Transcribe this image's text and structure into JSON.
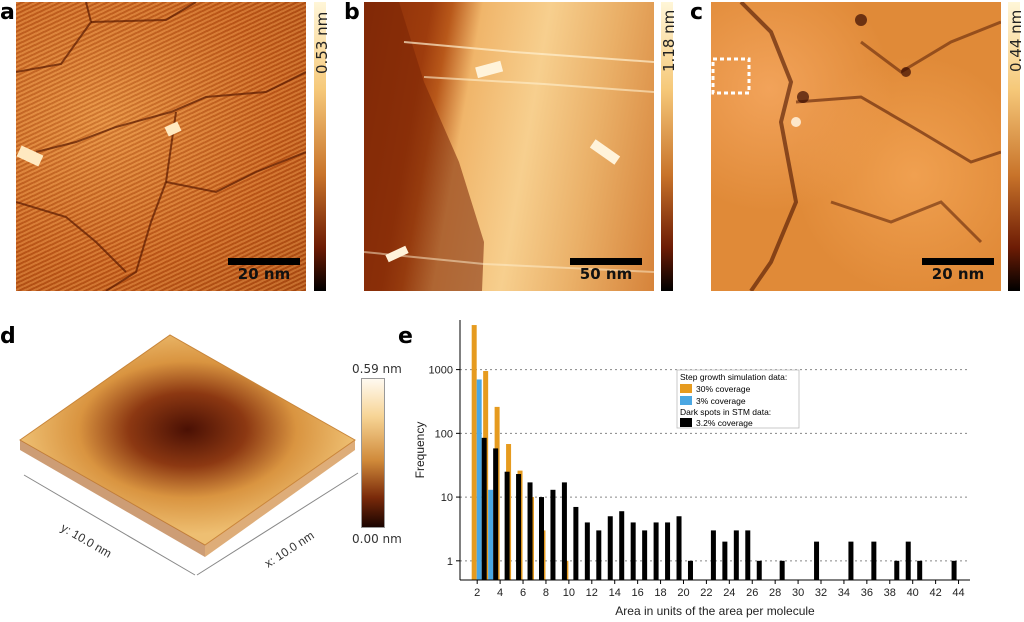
{
  "panels": {
    "a": {
      "letter": "a",
      "scale": "20 nm",
      "cbar": "0.53 nm"
    },
    "b": {
      "letter": "b",
      "scale": "50 nm",
      "cbar": "1.18 nm"
    },
    "c": {
      "letter": "c",
      "scale": "20 nm",
      "cbar": "0.44 nm"
    },
    "d": {
      "letter": "d",
      "cbar_top": "0.59 nm",
      "cbar_bottom": "0.00 nm",
      "axis_y": "y: 10.0 nm",
      "axis_x": "x: 10.0 nm"
    },
    "e": {
      "letter": "e"
    }
  },
  "colors": {
    "orange": "#e69b1f",
    "blue": "#4aa7e3",
    "black": "#000000"
  },
  "chart_data": {
    "type": "bar",
    "xlabel": "Area in units of the area per molecule",
    "ylabel": "Frequency",
    "yscale": "log",
    "ylim": [
      0.5,
      6000
    ],
    "yticks": [
      1,
      10,
      100,
      1000
    ],
    "ytick_labels": [
      "1",
      "10",
      "100",
      "1000"
    ],
    "xticks": [
      2,
      4,
      6,
      8,
      10,
      12,
      14,
      16,
      18,
      20,
      22,
      24,
      26,
      28,
      30,
      32,
      34,
      36,
      38,
      40,
      42,
      44
    ],
    "xlim": [
      0.5,
      45
    ],
    "legend_placement": "top-right",
    "legend_title1": "Step growth simulation data:",
    "legend_title2": "Dark spots in STM data:",
    "series": [
      {
        "name": "30% coverage",
        "color": "#e69b1f",
        "points": [
          [
            2,
            5000
          ],
          [
            3,
            950
          ],
          [
            4,
            260
          ],
          [
            5,
            68
          ],
          [
            6,
            26
          ],
          [
            7,
            10
          ],
          [
            8,
            3
          ],
          [
            10,
            1
          ]
        ]
      },
      {
        "name": "3% coverage",
        "color": "#4aa7e3",
        "points": [
          [
            2,
            700
          ],
          [
            3,
            13
          ]
        ]
      },
      {
        "name": "3.2% coverage",
        "color": "#000000",
        "points": [
          [
            2,
            85
          ],
          [
            3,
            58
          ],
          [
            4,
            25
          ],
          [
            5,
            23
          ],
          [
            6,
            17
          ],
          [
            7,
            10
          ],
          [
            8,
            13
          ],
          [
            9,
            17
          ],
          [
            10,
            7
          ],
          [
            11,
            4
          ],
          [
            12,
            3
          ],
          [
            13,
            5
          ],
          [
            14,
            6
          ],
          [
            15,
            4
          ],
          [
            16,
            3
          ],
          [
            17,
            4
          ],
          [
            18,
            4
          ],
          [
            19,
            5
          ],
          [
            20,
            1
          ],
          [
            22,
            3
          ],
          [
            23,
            2
          ],
          [
            24,
            3
          ],
          [
            25,
            3
          ],
          [
            26,
            1
          ],
          [
            28,
            1
          ],
          [
            31,
            2
          ],
          [
            34,
            2
          ],
          [
            36,
            2
          ],
          [
            38,
            1
          ],
          [
            39,
            2
          ],
          [
            40,
            1
          ],
          [
            43,
            1
          ]
        ]
      }
    ]
  }
}
